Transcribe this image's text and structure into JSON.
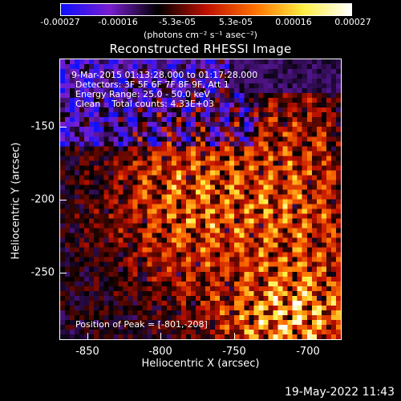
{
  "colorbar": {
    "tick_labels": [
      "-0.00027",
      "-0.00016",
      "-5.3e-05",
      "5.3e-05",
      "0.00016",
      "0.00027"
    ],
    "units": "(photons cm⁻² s⁻¹ asec⁻²)",
    "colors": [
      "#1010ff",
      "#7a1fd0",
      "#000000",
      "#c01000",
      "#ff7000",
      "#ffee40",
      "#ffffff"
    ]
  },
  "plot": {
    "title": "Reconstructed RHESSI Image",
    "annotations": [
      "9-Mar-2015 01:13:28.000 to 01:17:28.000",
      "Detectors: 3F 5F 6F 7F 8F 9F, Att 1",
      "Energy Range: 25.0 - 50.0 keV",
      "Clean    Total counts: 4.33E+03"
    ],
    "peak_label": "Position of Peak = [-801,-208]",
    "xlabel": "Heliocentric X (arcsec)",
    "ylabel": "Heliocentric Y (arcsec)",
    "x_ticks": [
      "-850",
      "-800",
      "-750",
      "-700"
    ],
    "y_ticks": [
      "-150",
      "-200",
      "-250"
    ],
    "x_range": [
      -870,
      -678
    ],
    "y_range": [
      -296,
      -104
    ]
  },
  "footer": {
    "date": "19-May-2022 11:43"
  }
}
